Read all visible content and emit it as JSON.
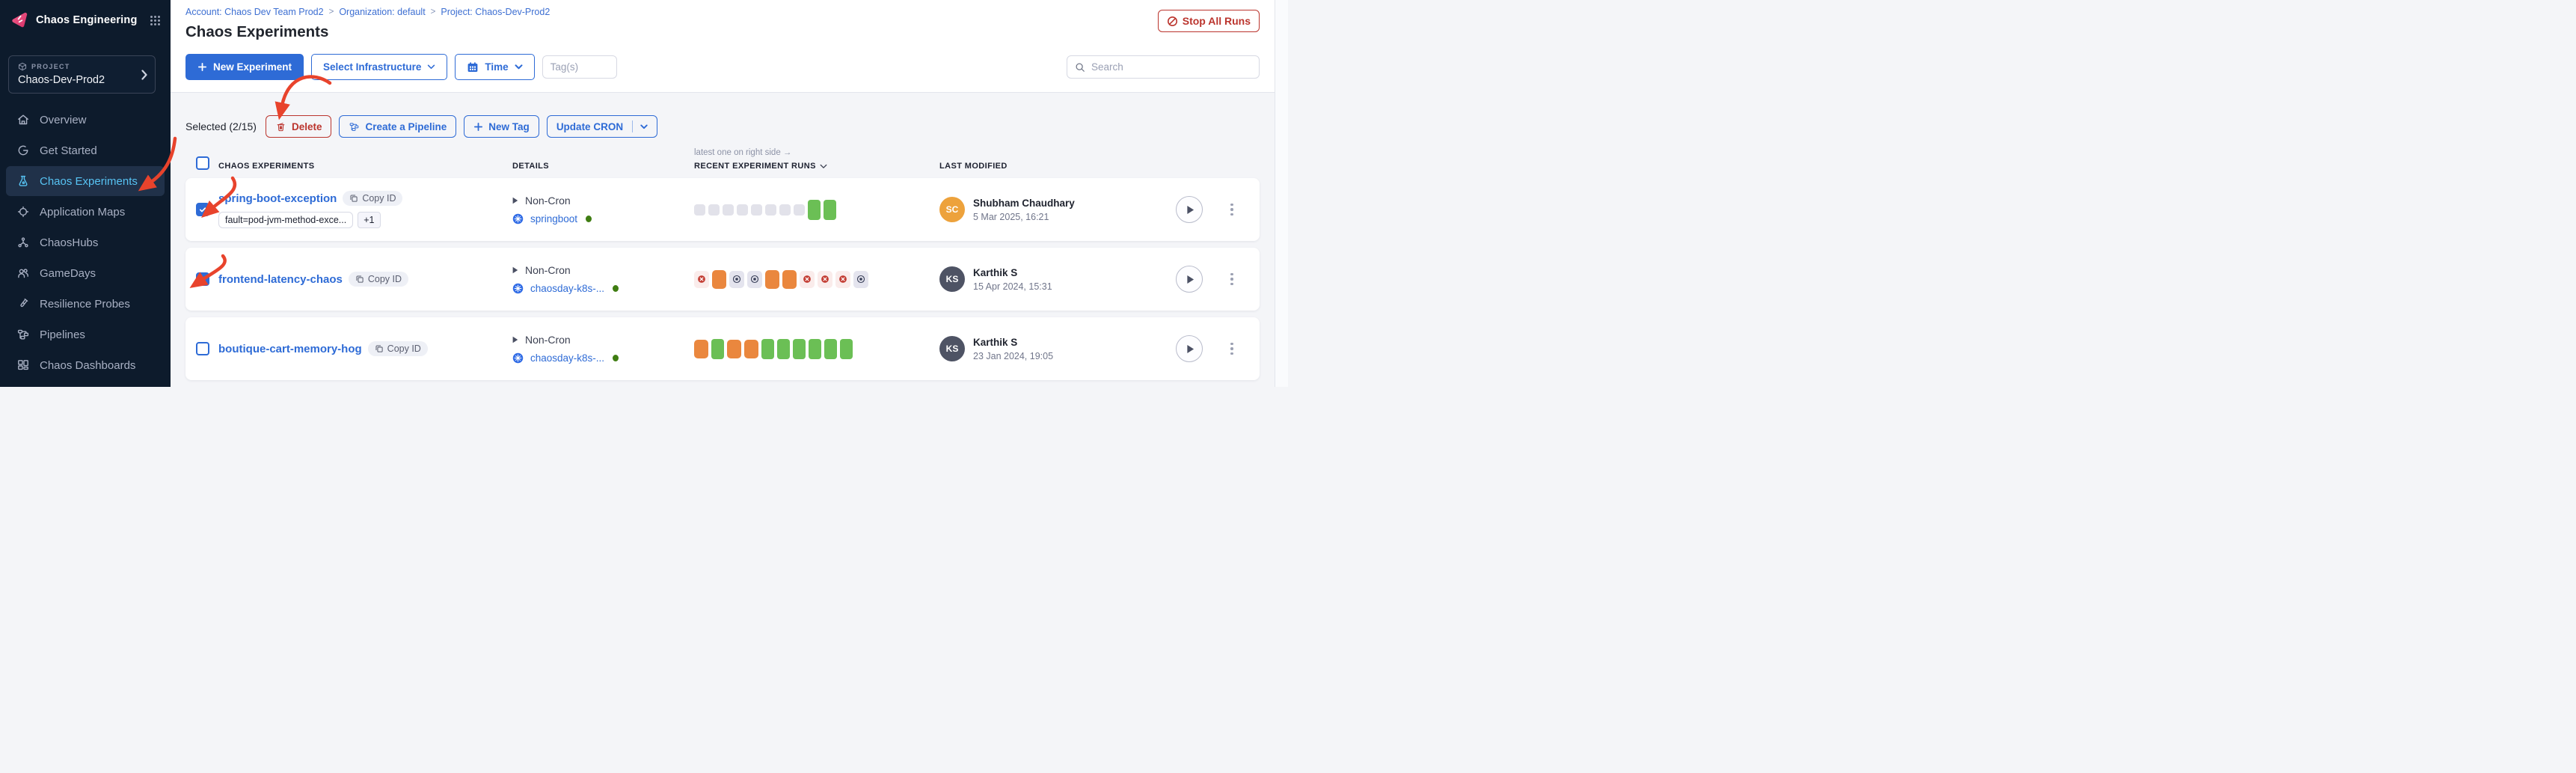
{
  "app": {
    "brand": "Chaos Engineering"
  },
  "sidebar": {
    "project_label": "PROJECT",
    "project_name": "Chaos-Dev-Prod2",
    "items": [
      {
        "label": "Overview",
        "icon": "home-icon",
        "selected": false
      },
      {
        "label": "Get Started",
        "icon": "get-started-icon",
        "selected": false
      },
      {
        "label": "Chaos Experiments",
        "icon": "flask-icon",
        "selected": true
      },
      {
        "label": "Application Maps",
        "icon": "application-maps-icon",
        "selected": false
      },
      {
        "label": "ChaosHubs",
        "icon": "chaoshubs-icon",
        "selected": false
      },
      {
        "label": "GameDays",
        "icon": "gamedays-icon",
        "selected": false
      },
      {
        "label": "Resilience Probes",
        "icon": "resilience-probes-icon",
        "selected": false
      },
      {
        "label": "Pipelines",
        "icon": "pipelines-icon",
        "selected": false
      },
      {
        "label": "Chaos Dashboards",
        "icon": "dashboards-icon",
        "selected": false
      }
    ]
  },
  "header": {
    "breadcrumb": [
      "Account: Chaos Dev Team Prod2",
      "Organization: default",
      "Project: Chaos-Dev-Prod2"
    ],
    "title": "Chaos Experiments",
    "stop_all_runs": "Stop All Runs"
  },
  "toolbar": {
    "new_experiment": "New Experiment",
    "select_infrastructure": "Select Infrastructure",
    "time": "Time",
    "tags_placeholder": "Tag(s)",
    "search_placeholder": "Search"
  },
  "selection_bar": {
    "selected_text": "Selected (2/15)",
    "delete": "Delete",
    "create_pipeline": "Create a Pipeline",
    "new_tag": "New Tag",
    "update_cron": "Update CRON"
  },
  "table": {
    "columns": [
      "CHAOS EXPERIMENTS",
      "DETAILS",
      "RECENT EXPERIMENT RUNS",
      "LAST MODIFIED"
    ],
    "runs_note": "latest one on right side →",
    "copy_id_label": "Copy ID",
    "rows": [
      {
        "checked": true,
        "name": "spring-boot-exception",
        "tags": [
          "fault=pod-jvm-method-exce...",
          "+1"
        ],
        "schedule": "Non-Cron",
        "infrastructure": "springboot",
        "infra_status": "online",
        "runs": [
          "none",
          "none",
          "none",
          "none",
          "none",
          "none",
          "none",
          "none",
          "passed",
          "passed"
        ],
        "modified_by": "Shubham Chaudhary",
        "initials": "SC",
        "avatar_color": "#eda23c",
        "modified_date": "5 Mar 2025, 16:21"
      },
      {
        "checked": true,
        "name": "frontend-latency-chaos",
        "tags": [],
        "schedule": "Non-Cron",
        "infrastructure": "chaosday-k8s-...",
        "infra_status": "online",
        "runs": [
          "failed",
          "warning",
          "stopped",
          "stopped",
          "warning",
          "warning",
          "failed",
          "failed",
          "failed",
          "stopped"
        ],
        "modified_by": "Karthik S",
        "initials": "KS",
        "avatar_color": "#4e5364",
        "modified_date": "15 Apr 2024, 15:31"
      },
      {
        "checked": false,
        "name": "boutique-cart-memory-hog",
        "tags": [],
        "schedule": "Non-Cron",
        "infrastructure": "chaosday-k8s-...",
        "infra_status": "online",
        "runs": [
          "warning",
          "passed",
          "warning",
          "warning",
          "passed",
          "passed",
          "passed",
          "passed",
          "passed",
          "passed"
        ],
        "modified_by": "Karthik S",
        "initials": "KS",
        "avatar_color": "#4e5364",
        "modified_date": "23 Jan 2024, 19:05"
      }
    ]
  },
  "colors": {
    "primary_blue": "#2e6bd6",
    "link_blue": "#3d6fd2",
    "danger_red": "#bb352e",
    "annotation_red": "#e8432c",
    "run_green": "#6bbf55",
    "run_orange": "#ea873e",
    "run_gray": "#e2e2ea",
    "failed_bg": "#faeceb",
    "failed_icon": "#c33c32",
    "stopped_bg": "#e4e4ee",
    "stopped_icon": "#353c55",
    "online_green": "#3f7d12",
    "sidebar_bg": "#0d1b2c",
    "sidebar_selected_bg": "#203149",
    "sidebar_selected_text": "#57c3f3",
    "content_bg": "#f4f5f8",
    "text_dark": "#22262e",
    "text_gray": "#70758a"
  }
}
